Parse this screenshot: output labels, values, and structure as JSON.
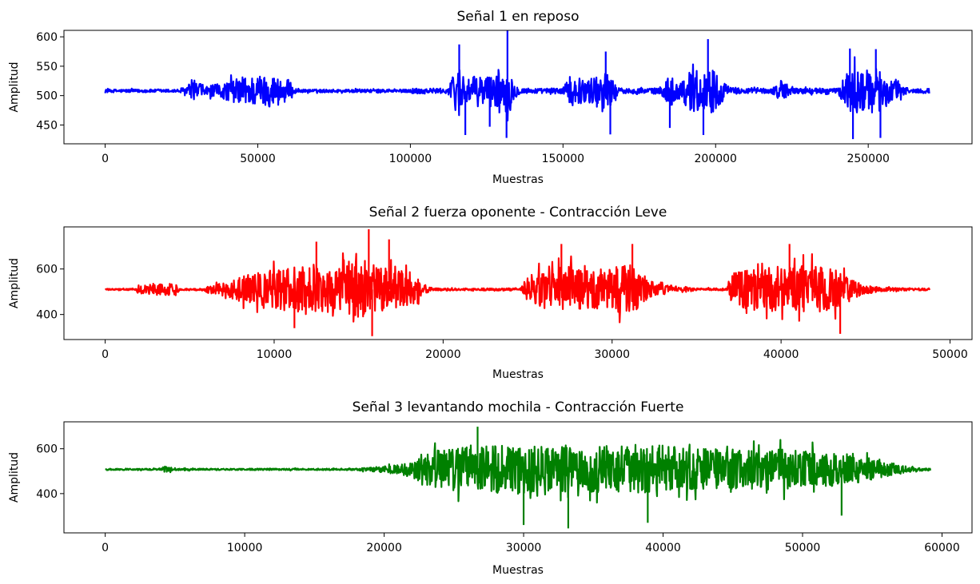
{
  "chart_data": [
    {
      "type": "line",
      "title": "Señal 1 en reposo",
      "xlabel": "Muestras",
      "ylabel": "Amplitud",
      "color": "#0000ff",
      "xlim": [
        -13500,
        284000
      ],
      "ylim": [
        418,
        611
      ],
      "xticks": [
        0,
        50000,
        100000,
        150000,
        200000,
        250000
      ],
      "yticks": [
        450,
        500,
        550,
        600
      ],
      "x_range": [
        0,
        270000
      ],
      "baseline": 508,
      "envelope": [
        [
          0,
          4
        ],
        [
          24000,
          4
        ],
        [
          26000,
          12
        ],
        [
          30000,
          25
        ],
        [
          33000,
          12
        ],
        [
          38000,
          20
        ],
        [
          42000,
          30
        ],
        [
          48000,
          40
        ],
        [
          52000,
          42
        ],
        [
          56000,
          40
        ],
        [
          60000,
          30
        ],
        [
          62000,
          10
        ],
        [
          63000,
          4
        ],
        [
          100000,
          4
        ],
        [
          101000,
          8
        ],
        [
          112000,
          6
        ],
        [
          114000,
          40
        ],
        [
          116000,
          70
        ],
        [
          119000,
          30
        ],
        [
          122000,
          42
        ],
        [
          126000,
          40
        ],
        [
          130000,
          50
        ],
        [
          132000,
          60
        ],
        [
          134000,
          20
        ],
        [
          136000,
          8
        ],
        [
          144000,
          6
        ],
        [
          150000,
          10
        ],
        [
          153000,
          40
        ],
        [
          157000,
          30
        ],
        [
          160000,
          35
        ],
        [
          163000,
          55
        ],
        [
          166000,
          40
        ],
        [
          168000,
          8
        ],
        [
          172000,
          6
        ],
        [
          175000,
          10
        ],
        [
          178000,
          6
        ],
        [
          182000,
          10
        ],
        [
          185000,
          45
        ],
        [
          188000,
          15
        ],
        [
          190000,
          40
        ],
        [
          194000,
          65
        ],
        [
          196000,
          50
        ],
        [
          199000,
          60
        ],
        [
          202000,
          30
        ],
        [
          205000,
          8
        ],
        [
          218000,
          6
        ],
        [
          222000,
          25
        ],
        [
          225000,
          8
        ],
        [
          240000,
          6
        ],
        [
          242000,
          40
        ],
        [
          245000,
          65
        ],
        [
          248000,
          50
        ],
        [
          252000,
          60
        ],
        [
          255000,
          50
        ],
        [
          258000,
          30
        ],
        [
          261000,
          15
        ],
        [
          264000,
          6
        ],
        [
          270000,
          6
        ]
      ],
      "peaks": [
        [
          131800,
          611
        ],
        [
          131500,
          428
        ],
        [
          116000,
          587
        ],
        [
          118000,
          433
        ],
        [
          164000,
          575
        ],
        [
          165500,
          434
        ],
        [
          197500,
          596
        ],
        [
          196000,
          433
        ],
        [
          244000,
          580
        ],
        [
          245000,
          426
        ],
        [
          252500,
          579
        ],
        [
          254000,
          428
        ],
        [
          185000,
          445
        ],
        [
          126000,
          447
        ]
      ]
    },
    {
      "type": "line",
      "title": "Señal 2 fuerza oponente - Contracción Leve",
      "xlabel": "Muestras",
      "ylabel": "Amplitud",
      "color": "#ff0000",
      "xlim": [
        -2440,
        51300
      ],
      "ylim": [
        290,
        785
      ],
      "xticks": [
        0,
        10000,
        20000,
        30000,
        40000,
        50000
      ],
      "yticks": [
        400,
        600
      ],
      "x_range": [
        0,
        48800
      ],
      "baseline": 510,
      "envelope": [
        [
          0,
          5
        ],
        [
          1800,
          5
        ],
        [
          2000,
          35
        ],
        [
          4200,
          40
        ],
        [
          4400,
          5
        ],
        [
          5800,
          8
        ],
        [
          6200,
          30
        ],
        [
          7200,
          50
        ],
        [
          9000,
          120
        ],
        [
          11000,
          150
        ],
        [
          13000,
          160
        ],
        [
          15000,
          190
        ],
        [
          16500,
          150
        ],
        [
          18000,
          120
        ],
        [
          18800,
          40
        ],
        [
          19400,
          8
        ],
        [
          24600,
          8
        ],
        [
          25000,
          100
        ],
        [
          27000,
          160
        ],
        [
          29000,
          130
        ],
        [
          31000,
          170
        ],
        [
          32000,
          100
        ],
        [
          32500,
          40
        ],
        [
          34000,
          25
        ],
        [
          35000,
          8
        ],
        [
          36800,
          8
        ],
        [
          37200,
          120
        ],
        [
          39000,
          150
        ],
        [
          41000,
          160
        ],
        [
          43000,
          150
        ],
        [
          44000,
          80
        ],
        [
          45000,
          30
        ],
        [
          46000,
          12
        ],
        [
          48800,
          8
        ]
      ],
      "peaks": [
        [
          15600,
          775
        ],
        [
          15800,
          305
        ],
        [
          11200,
          340
        ],
        [
          43500,
          315
        ],
        [
          40500,
          710
        ],
        [
          16800,
          730
        ],
        [
          31200,
          710
        ],
        [
          27000,
          710
        ],
        [
          12500,
          720
        ]
      ]
    },
    {
      "type": "line",
      "title": "Señal 3 levantando mochila - Contracción Fuerte",
      "xlabel": "Muestras",
      "ylabel": "Amplitud",
      "color": "#008000",
      "xlim": [
        -2960,
        62150
      ],
      "ylim": [
        225,
        720
      ],
      "xticks": [
        0,
        10000,
        20000,
        30000,
        40000,
        50000,
        60000
      ],
      "yticks": [
        400,
        600
      ],
      "x_range": [
        0,
        59200
      ],
      "baseline": 508,
      "envelope": [
        [
          0,
          5
        ],
        [
          3800,
          5
        ],
        [
          4200,
          20
        ],
        [
          4800,
          12
        ],
        [
          5400,
          5
        ],
        [
          5800,
          10
        ],
        [
          6200,
          5
        ],
        [
          18000,
          6
        ],
        [
          19000,
          15
        ],
        [
          21000,
          30
        ],
        [
          22000,
          60
        ],
        [
          23000,
          130
        ],
        [
          25000,
          150
        ],
        [
          27000,
          160
        ],
        [
          30000,
          170
        ],
        [
          33000,
          165
        ],
        [
          36000,
          160
        ],
        [
          39000,
          175
        ],
        [
          42000,
          150
        ],
        [
          45000,
          140
        ],
        [
          48000,
          140
        ],
        [
          51000,
          120
        ],
        [
          53000,
          110
        ],
        [
          55000,
          70
        ],
        [
          56500,
          40
        ],
        [
          58000,
          12
        ],
        [
          59200,
          8
        ]
      ],
      "peaks": [
        [
          26700,
          698
        ],
        [
          33200,
          245
        ],
        [
          30000,
          260
        ],
        [
          38900,
          270
        ],
        [
          52800,
          302
        ]
      ]
    }
  ]
}
